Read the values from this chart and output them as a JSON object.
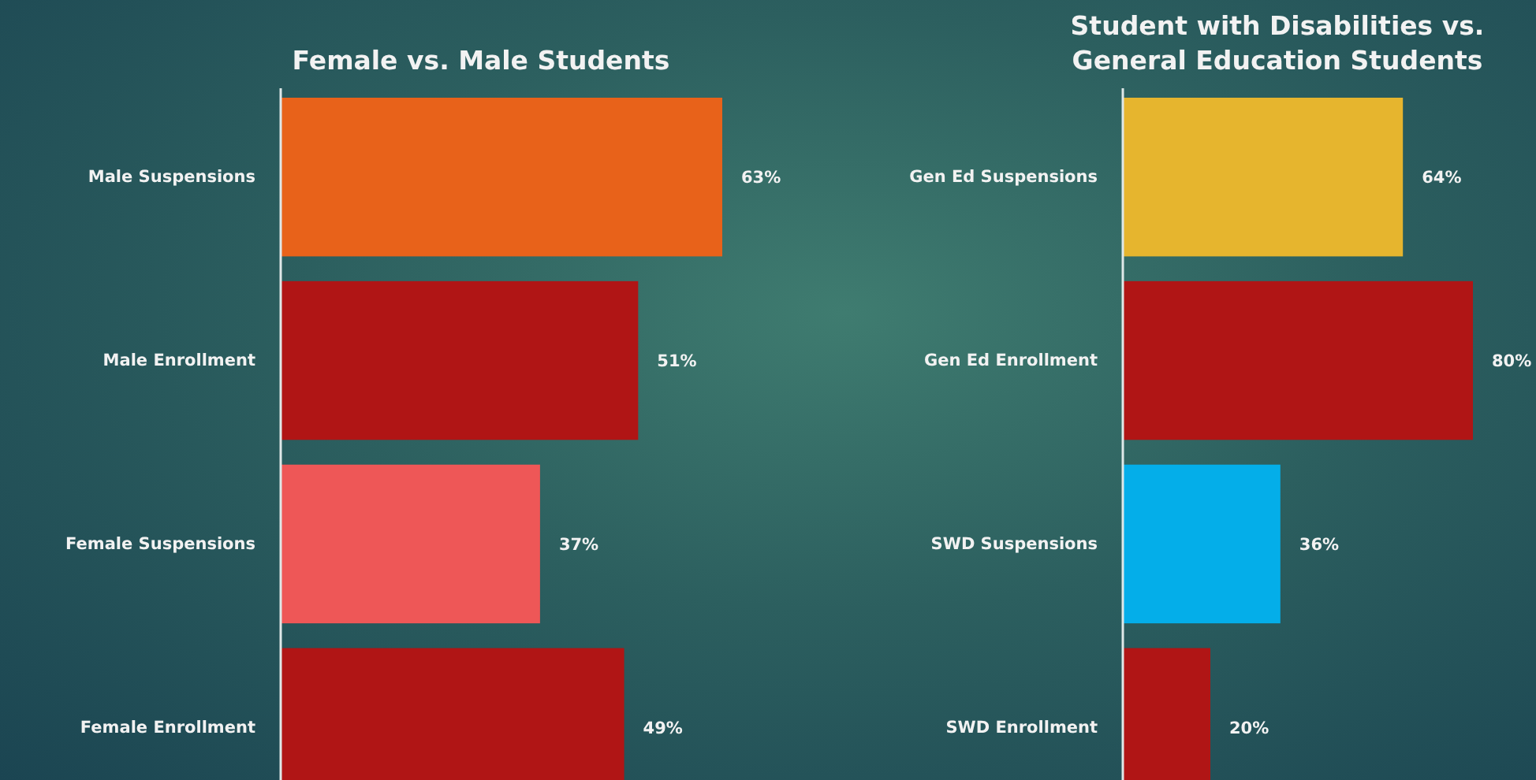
{
  "chart_data": [
    {
      "type": "bar",
      "orientation": "horizontal",
      "title": "Female vs. Male Students",
      "categories": [
        "Male Suspensions",
        "Male Enrollment",
        "Female Suspensions",
        "Female Enrollment"
      ],
      "values": [
        63,
        51,
        37,
        49
      ],
      "colors": [
        "#e8621a",
        "#b01515",
        "#ee5757",
        "#b01515"
      ],
      "value_labels": [
        "63%",
        "51%",
        "37%",
        "49%"
      ]
    },
    {
      "type": "bar",
      "orientation": "horizontal",
      "title": "Student with Disabilities vs. General Education Students",
      "categories": [
        "Gen Ed Suspensions",
        "Gen Ed Enrollment",
        "SWD Suspensions",
        "SWD Enrollment"
      ],
      "values": [
        64,
        80,
        36,
        20
      ],
      "colors": [
        "#e6b52e",
        "#b01515",
        "#04aee9",
        "#b01515"
      ],
      "value_labels": [
        "64%",
        "80%",
        "36%",
        "20%"
      ]
    }
  ]
}
